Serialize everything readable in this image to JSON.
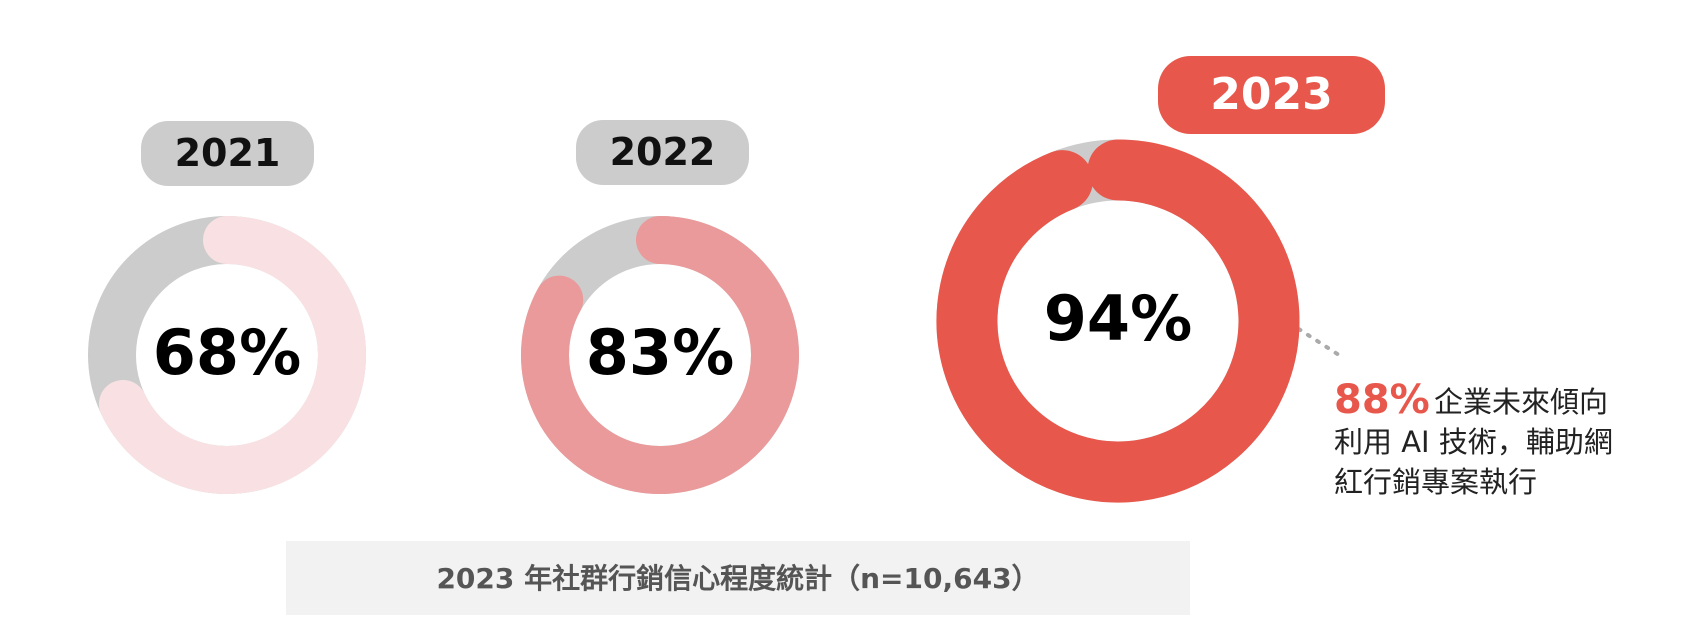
{
  "chart_data": [
    {
      "type": "donut",
      "title": "2021",
      "value": 68,
      "value_label": "68%",
      "color": "#f9e1e3",
      "track_color": "#cccccc",
      "title_color": "#cccccc"
    },
    {
      "type": "donut",
      "title": "2022",
      "value": 83,
      "value_label": "83%",
      "color": "#ea9a9a",
      "track_color": "#cccccc",
      "title_color": "#cccccc"
    },
    {
      "type": "donut",
      "title": "2023",
      "value": 94,
      "value_label": "94%",
      "color": "#e8574b",
      "track_color": "#cccccc",
      "title_color": "#e8574b",
      "annotation": {
        "value": 88,
        "value_label": "88%",
        "lines": [
          "企業未來傾向",
          "利用 AI 技術，輔助網",
          "紅行銷專案執行"
        ]
      }
    }
  ],
  "caption": "2023 年社群行銷信心程度統計（n=10,643）"
}
